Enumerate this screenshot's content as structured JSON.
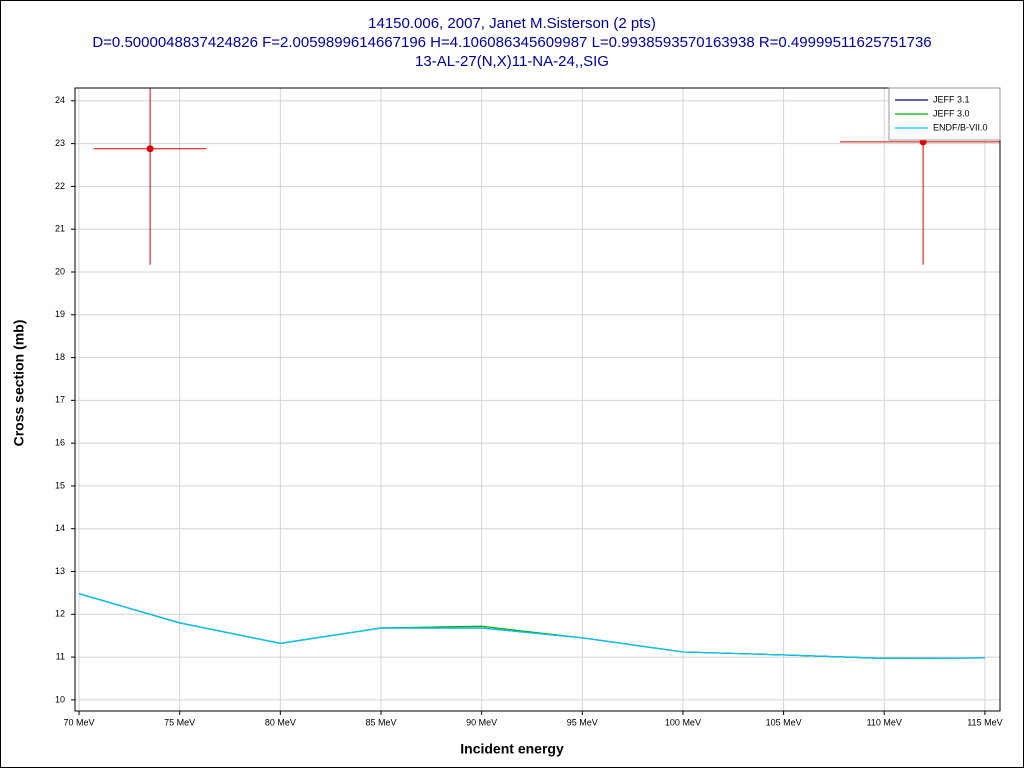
{
  "chart_data": {
    "type": "line",
    "title": "14150.006, 2007, Janet M.Sisterson (2 pts)",
    "subtitle": "D=0.5000048837424826 F=2.0059899614667196 H=4.106086345609987 L=0.9938593570163938 R=0.49999511625751736",
    "reaction": "13-AL-27(N,X)11-NA-24,,SIG",
    "x_label": "Incident energy",
    "y_label": "Cross section (mb)",
    "x": [
      70,
      75,
      80,
      85,
      90,
      95,
      100,
      105,
      110,
      115
    ],
    "series": [
      {
        "name": "JEFF 3.1",
        "color": "#00008b",
        "values": [
          12.48,
          11.8,
          11.32,
          11.68,
          11.68,
          11.45,
          11.12,
          11.05,
          10.97,
          10.98
        ]
      },
      {
        "name": "JEFF 3.0",
        "color": "#00b000",
        "values": [
          12.48,
          11.8,
          11.32,
          11.68,
          11.72,
          11.45,
          11.12,
          11.05,
          10.97,
          10.98
        ]
      },
      {
        "name": "ENDF/B-VII.0",
        "color": "#00c8ff",
        "values": [
          12.48,
          11.8,
          11.32,
          11.68,
          11.68,
          11.45,
          11.12,
          11.05,
          10.97,
          10.98
        ]
      }
    ],
    "points": {
      "color": "#e00000",
      "x": [
        73.53,
        111.93
      ],
      "values": [
        22.88,
        23.04
      ],
      "xerr": [
        2.8,
        4.13
      ],
      "yerr": [
        2.71,
        2.87
      ]
    },
    "xlim": [
      69.8,
      115.75
    ],
    "ylim": [
      9.74,
      24.3
    ],
    "xticks": [
      {
        "value": 70,
        "label": "70 MeV"
      },
      {
        "value": 75,
        "label": "75 MeV"
      },
      {
        "value": 80,
        "label": "80 MeV"
      },
      {
        "value": 85,
        "label": "85 MeV"
      },
      {
        "value": 90,
        "label": "90 MeV"
      },
      {
        "value": 95,
        "label": "95 MeV"
      },
      {
        "value": 100,
        "label": "100 MeV"
      },
      {
        "value": 105,
        "label": "105 MeV"
      },
      {
        "value": 110,
        "label": "110 MeV"
      },
      {
        "value": 115,
        "label": "115 MeV"
      }
    ],
    "yticks": [
      10,
      11,
      12,
      13,
      14,
      15,
      16,
      17,
      18,
      19,
      20,
      21,
      22,
      23,
      24
    ],
    "grid": true,
    "legend": "top-right"
  }
}
